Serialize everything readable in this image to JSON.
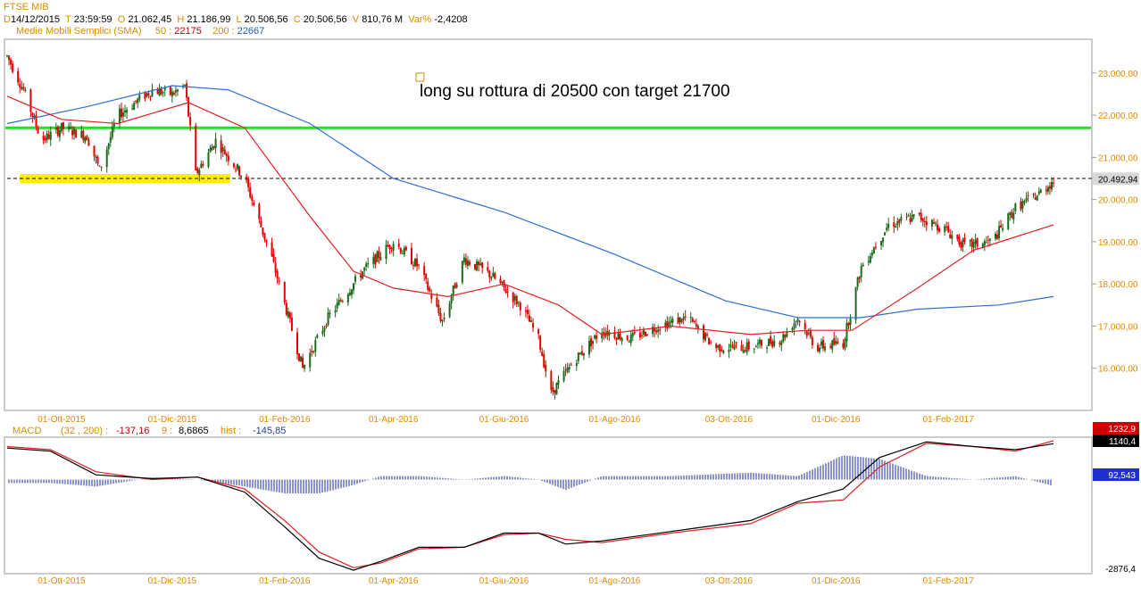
{
  "header": {
    "title": "FTSE MIB",
    "d_key": "D",
    "date": "14/12/2015",
    "t_key": "T",
    "time": "23:59:59",
    "o_key": "O",
    "open": "21.062,45",
    "h_key": "H",
    "high": "21.186,99",
    "l_key": "L",
    "low": "20.506,56",
    "c_key": "C",
    "close": "20.506,56",
    "vol_key": "V",
    "volume": "810,76 M",
    "var_key": "Var%",
    "var": "-2,4208",
    "sma_label": "Medie Mobili Semplici (SMA)",
    "sma50_key": "50 :",
    "sma50": "22175",
    "sma200_key": "200 :",
    "sma200": "22667"
  },
  "colors": {
    "candle_up": "#1a6b1a",
    "candle_down": "#e00000",
    "sma50": "#e02020",
    "sma200": "#2f6fd0",
    "support": "#22e322",
    "zone": "#ffee00",
    "macd": "#000000",
    "signal": "#e02020",
    "hist": "#1a2a9a",
    "axis_text": "#e08a00"
  },
  "annotation": {
    "text": "long su rottura di 20500 con target 21700"
  },
  "chart_data": {
    "type": "candlestick",
    "title": "FTSE MIB",
    "x_ticks": [
      "01-Ott-2015",
      "01-Dic-2015",
      "01-Feb-2016",
      "01-Apr-2016",
      "01-Giu-2016",
      "01-Ago-2016",
      "03-Ott-2016",
      "01-Dic-2016",
      "01-Feb-2017"
    ],
    "y_ticks": [
      "23.000,00",
      "22.000,00",
      "21.000,00",
      "20.000,00",
      "19.000,00",
      "18.000,00",
      "17.000,00",
      "16.000,00"
    ],
    "ylim": [
      15000,
      23800
    ],
    "last_price_label": "20.492,94",
    "last_price": 20492.94,
    "horizontal_lines": [
      {
        "name": "target",
        "value": 21700
      },
      {
        "name": "breakout",
        "value": 20500
      }
    ],
    "close_path": [
      [
        "2015-09-01",
        23400
      ],
      [
        "2015-09-10",
        22600
      ],
      [
        "2015-09-20",
        21400
      ],
      [
        "2015-10-01",
        21700
      ],
      [
        "2015-10-15",
        21500
      ],
      [
        "2015-10-22",
        20700
      ],
      [
        "2015-11-01",
        22000
      ],
      [
        "2015-11-20",
        22600
      ],
      [
        "2015-12-01",
        22500
      ],
      [
        "2015-12-08",
        22700
      ],
      [
        "2015-12-14",
        20600
      ],
      [
        "2015-12-25",
        21400
      ],
      [
        "2016-01-10",
        20500
      ],
      [
        "2016-01-25",
        18600
      ],
      [
        "2016-02-11",
        16000
      ],
      [
        "2016-02-25",
        17200
      ],
      [
        "2016-03-15",
        18300
      ],
      [
        "2016-04-01",
        19000
      ],
      [
        "2016-04-15",
        18400
      ],
      [
        "2016-04-28",
        17100
      ],
      [
        "2016-05-10",
        18600
      ],
      [
        "2016-05-25",
        18200
      ],
      [
        "2016-06-10",
        17500
      ],
      [
        "2016-06-20",
        16700
      ],
      [
        "2016-06-27",
        15400
      ],
      [
        "2016-07-10",
        16200
      ],
      [
        "2016-07-25",
        16900
      ],
      [
        "2016-08-10",
        16700
      ],
      [
        "2016-08-25",
        17000
      ],
      [
        "2016-09-10",
        17200
      ],
      [
        "2016-09-25",
        16500
      ],
      [
        "2016-10-15",
        16500
      ],
      [
        "2016-11-01",
        16700
      ],
      [
        "2016-11-10",
        17200
      ],
      [
        "2016-11-20",
        16500
      ],
      [
        "2016-12-05",
        16600
      ],
      [
        "2016-12-15",
        18400
      ],
      [
        "2016-12-30",
        19400
      ],
      [
        "2017-01-15",
        19600
      ],
      [
        "2017-01-30",
        19300
      ],
      [
        "2017-02-10",
        18900
      ],
      [
        "2017-02-25",
        19000
      ],
      [
        "2017-03-10",
        19800
      ],
      [
        "2017-03-22",
        20100
      ],
      [
        "2017-03-31",
        20450
      ]
    ],
    "sma50": [
      [
        "2015-09-01",
        22450
      ],
      [
        "2015-10-01",
        21900
      ],
      [
        "2015-11-01",
        21800
      ],
      [
        "2015-12-10",
        22300
      ],
      [
        "2016-01-10",
        21700
      ],
      [
        "2016-02-15",
        19600
      ],
      [
        "2016-03-10",
        18300
      ],
      [
        "2016-04-01",
        17900
      ],
      [
        "2016-05-01",
        17700
      ],
      [
        "2016-06-01",
        18000
      ],
      [
        "2016-07-01",
        17500
      ],
      [
        "2016-07-25",
        16800
      ],
      [
        "2016-09-01",
        17000
      ],
      [
        "2016-10-15",
        16800
      ],
      [
        "2016-11-15",
        16900
      ],
      [
        "2016-12-10",
        16900
      ],
      [
        "2017-01-15",
        17900
      ],
      [
        "2017-02-15",
        18800
      ],
      [
        "2017-03-31",
        19400
      ]
    ],
    "sma200": [
      [
        "2015-09-01",
        21800
      ],
      [
        "2015-10-15",
        22200
      ],
      [
        "2015-12-01",
        22700
      ],
      [
        "2016-01-01",
        22600
      ],
      [
        "2016-02-15",
        21800
      ],
      [
        "2016-04-01",
        20500
      ],
      [
        "2016-06-01",
        19700
      ],
      [
        "2016-08-01",
        18700
      ],
      [
        "2016-10-01",
        17600
      ],
      [
        "2016-11-10",
        17200
      ],
      [
        "2016-12-15",
        17200
      ],
      [
        "2017-01-15",
        17400
      ],
      [
        "2017-03-01",
        17500
      ],
      [
        "2017-03-31",
        17700
      ]
    ],
    "macd_panel": {
      "label": "MACD",
      "params": "(32 , 200) :",
      "macd_value": "-137,16",
      "signal_period": "9 :",
      "signal_value": "8,6865",
      "hist_label": "hist :",
      "hist_value": "-145,85",
      "axis_labels": [
        "1232,9",
        "1140,4",
        "92,543",
        "-2876,4"
      ],
      "ylim": [
        -2876.4,
        1232.9
      ],
      "macd": [
        [
          "2015-09-01",
          1000
        ],
        [
          "2015-09-25",
          900
        ],
        [
          "2015-10-20",
          150
        ],
        [
          "2015-11-20",
          30
        ],
        [
          "2015-12-15",
          80
        ],
        [
          "2016-01-10",
          -400
        ],
        [
          "2016-02-01",
          -1500
        ],
        [
          "2016-02-20",
          -2500
        ],
        [
          "2016-03-10",
          -2880
        ],
        [
          "2016-03-25",
          -2600
        ],
        [
          "2016-04-15",
          -2150
        ],
        [
          "2016-05-10",
          -2150
        ],
        [
          "2016-06-01",
          -1700
        ],
        [
          "2016-06-20",
          -1700
        ],
        [
          "2016-07-05",
          -2050
        ],
        [
          "2016-07-25",
          -1950
        ],
        [
          "2016-09-01",
          -1650
        ],
        [
          "2016-10-15",
          -1300
        ],
        [
          "2016-11-10",
          -700
        ],
        [
          "2016-12-05",
          -300
        ],
        [
          "2016-12-25",
          700
        ],
        [
          "2017-01-20",
          1200
        ],
        [
          "2017-02-15",
          1050
        ],
        [
          "2017-03-10",
          950
        ],
        [
          "2017-03-31",
          1140
        ]
      ],
      "signal": [
        [
          "2015-09-01",
          1050
        ],
        [
          "2015-09-25",
          950
        ],
        [
          "2015-10-20",
          250
        ],
        [
          "2015-11-20",
          0
        ],
        [
          "2015-12-15",
          80
        ],
        [
          "2016-01-10",
          -300
        ],
        [
          "2016-02-01",
          -1300
        ],
        [
          "2016-02-20",
          -2300
        ],
        [
          "2016-03-10",
          -2800
        ],
        [
          "2016-03-25",
          -2650
        ],
        [
          "2016-04-15",
          -2200
        ],
        [
          "2016-05-10",
          -2150
        ],
        [
          "2016-06-01",
          -1750
        ],
        [
          "2016-06-20",
          -1700
        ],
        [
          "2016-07-05",
          -1900
        ],
        [
          "2016-07-25",
          -2000
        ],
        [
          "2016-09-01",
          -1700
        ],
        [
          "2016-10-15",
          -1400
        ],
        [
          "2016-11-10",
          -750
        ],
        [
          "2016-12-05",
          -650
        ],
        [
          "2016-12-25",
          400
        ],
        [
          "2017-01-20",
          1150
        ],
        [
          "2017-02-15",
          1050
        ],
        [
          "2017-03-10",
          900
        ],
        [
          "2017-03-31",
          1232
        ]
      ]
    }
  }
}
